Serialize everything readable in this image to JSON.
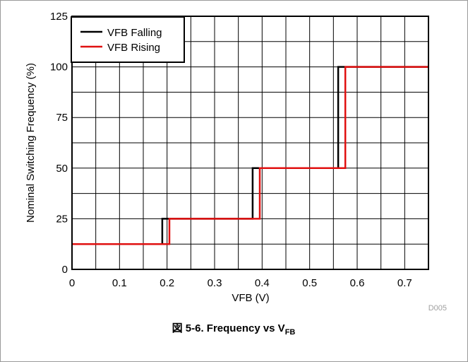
{
  "chart_data": {
    "type": "line",
    "title": "",
    "xlabel": "VFB (V)",
    "ylabel": "Nominal Switching Frequency (%)",
    "xlim": [
      0,
      0.75
    ],
    "ylim": [
      0,
      125
    ],
    "x_ticks": [
      "0",
      "0.1",
      "0.2",
      "0.3",
      "0.4",
      "0.5",
      "0.6",
      "0.7"
    ],
    "y_ticks": [
      "0",
      "25",
      "50",
      "75",
      "100",
      "125"
    ],
    "grid": true,
    "legend_position": "top-left",
    "series": [
      {
        "name": "VFB Falling",
        "color": "#000000",
        "x": [
          0,
          0.19,
          0.19,
          0.38,
          0.38,
          0.56,
          0.56,
          0.75
        ],
        "y": [
          12.5,
          12.5,
          25,
          25,
          50,
          50,
          100,
          100
        ]
      },
      {
        "name": "VFB Rising",
        "color": "#e01010",
        "x": [
          0,
          0.205,
          0.205,
          0.395,
          0.395,
          0.575,
          0.575,
          0.75
        ],
        "y": [
          12.5,
          12.5,
          25,
          25,
          50,
          50,
          100,
          100
        ]
      }
    ]
  },
  "figure_id": "D005",
  "caption": {
    "prefix": "図 5-6. Frequency vs V",
    "subscript": "FB"
  }
}
